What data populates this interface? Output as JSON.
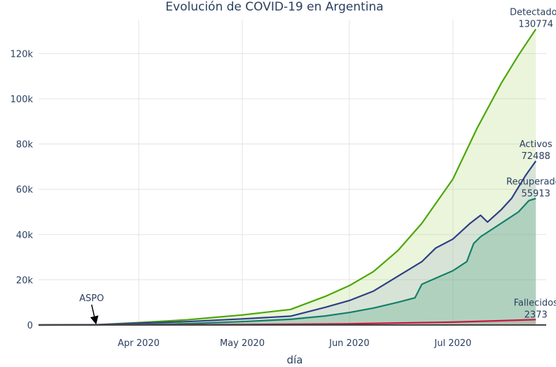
{
  "chart_data": {
    "type": "area",
    "title": "Evolución de COVID-19 en Argentina",
    "xlabel": "día",
    "ylabel": "",
    "x_start": "2020-03-03",
    "x_end": "2020-07-25",
    "xlim": [
      "2020-03-03",
      "2020-07-28"
    ],
    "ylim": [
      0,
      135000
    ],
    "grid": true,
    "x_ticks": [
      {
        "date": "2020-04-01",
        "label": "Apr 2020"
      },
      {
        "date": "2020-05-01",
        "label": "May 2020"
      },
      {
        "date": "2020-06-01",
        "label": "Jun 2020"
      },
      {
        "date": "2020-07-01",
        "label": "Jul 2020"
      }
    ],
    "y_ticks": [
      {
        "value": 0,
        "label": "0"
      },
      {
        "value": 20000,
        "label": "20k"
      },
      {
        "value": 40000,
        "label": "40k"
      },
      {
        "value": 60000,
        "label": "60k"
      },
      {
        "value": 80000,
        "label": "80k"
      },
      {
        "value": 100000,
        "label": "100k"
      },
      {
        "value": 120000,
        "label": "120k"
      }
    ],
    "series": [
      {
        "name": "Detectados",
        "color": "#4ca605",
        "fill": "rgba(170,215,110,0.25)",
        "last_value": "130774",
        "points": [
          [
            "2020-03-03",
            1
          ],
          [
            "2020-03-20",
            128
          ],
          [
            "2020-04-01",
            1054
          ],
          [
            "2020-04-15",
            2277
          ],
          [
            "2020-05-01",
            4428
          ],
          [
            "2020-05-15",
            6879
          ],
          [
            "2020-05-25",
            12628
          ],
          [
            "2020-06-01",
            17415
          ],
          [
            "2020-06-08",
            23620
          ],
          [
            "2020-06-15",
            32785
          ],
          [
            "2020-06-22",
            44931
          ],
          [
            "2020-07-01",
            64530
          ],
          [
            "2020-07-08",
            87030
          ],
          [
            "2020-07-15",
            106910
          ],
          [
            "2020-07-20",
            119301
          ],
          [
            "2020-07-25",
            130774
          ]
        ]
      },
      {
        "name": "Activos",
        "color": "#2e3f85",
        "fill": "rgba(150,165,200,0.22)",
        "last_value": "72488",
        "points": [
          [
            "2020-03-03",
            1
          ],
          [
            "2020-03-20",
            120
          ],
          [
            "2020-04-01",
            800
          ],
          [
            "2020-04-15",
            1500
          ],
          [
            "2020-05-01",
            2700
          ],
          [
            "2020-05-15",
            3900
          ],
          [
            "2020-05-25",
            7800
          ],
          [
            "2020-06-01",
            10800
          ],
          [
            "2020-06-08",
            15000
          ],
          [
            "2020-06-15",
            21500
          ],
          [
            "2020-06-22",
            28000
          ],
          [
            "2020-06-26",
            34000
          ],
          [
            "2020-07-01",
            38000
          ],
          [
            "2020-07-06",
            45000
          ],
          [
            "2020-07-09",
            48500
          ],
          [
            "2020-07-11",
            45500
          ],
          [
            "2020-07-15",
            51000
          ],
          [
            "2020-07-18",
            56000
          ],
          [
            "2020-07-22",
            66000
          ],
          [
            "2020-07-25",
            72488
          ]
        ]
      },
      {
        "name": "Recuperados",
        "color": "#138068",
        "fill": "rgba(80,160,130,0.28)",
        "last_value": "55913",
        "points": [
          [
            "2020-03-03",
            0
          ],
          [
            "2020-03-20",
            5
          ],
          [
            "2020-04-01",
            200
          ],
          [
            "2020-04-15",
            600
          ],
          [
            "2020-05-01",
            1500
          ],
          [
            "2020-05-15",
            2500
          ],
          [
            "2020-05-25",
            4000
          ],
          [
            "2020-06-01",
            5500
          ],
          [
            "2020-06-08",
            7500
          ],
          [
            "2020-06-15",
            10000
          ],
          [
            "2020-06-20",
            12000
          ],
          [
            "2020-06-22",
            18000
          ],
          [
            "2020-07-01",
            24000
          ],
          [
            "2020-07-05",
            28000
          ],
          [
            "2020-07-07",
            36000
          ],
          [
            "2020-07-09",
            39000
          ],
          [
            "2020-07-15",
            45000
          ],
          [
            "2020-07-20",
            50000
          ],
          [
            "2020-07-23",
            55000
          ],
          [
            "2020-07-25",
            55913
          ]
        ]
      },
      {
        "name": "Fallecidos",
        "color": "#c8173f",
        "fill": "rgba(200,23,63,0.10)",
        "last_value": "2373",
        "points": [
          [
            "2020-03-03",
            0
          ],
          [
            "2020-04-01",
            27
          ],
          [
            "2020-05-01",
            218
          ],
          [
            "2020-06-01",
            537
          ],
          [
            "2020-07-01",
            1280
          ],
          [
            "2020-07-15",
            1900
          ],
          [
            "2020-07-25",
            2373
          ]
        ]
      }
    ],
    "annotations": [
      {
        "text": "ASPO",
        "date": "2020-03-20",
        "value": 0,
        "arrow": true
      }
    ]
  }
}
